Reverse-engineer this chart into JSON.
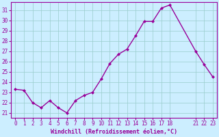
{
  "x": [
    0,
    1,
    2,
    3,
    4,
    5,
    6,
    7,
    8,
    9,
    10,
    11,
    12,
    13,
    14,
    15,
    16,
    17,
    18,
    21,
    22,
    23
  ],
  "y": [
    23.3,
    23.2,
    22.0,
    21.5,
    22.2,
    21.5,
    21.0,
    22.2,
    22.7,
    23.0,
    24.3,
    25.8,
    26.7,
    27.2,
    28.5,
    29.9,
    29.9,
    31.2,
    31.5,
    27.0,
    25.7,
    24.5
  ],
  "line_color": "#990099",
  "marker": "D",
  "marker_size": 2.0,
  "bg_color": "#cceeff",
  "grid_color": "#99cccc",
  "xlabel": "Windchill (Refroidissement éolien,°C)",
  "xlabel_color": "#990099",
  "tick_color": "#990099",
  "spine_color": "#990099",
  "xlim": [
    -0.5,
    23.5
  ],
  "ylim": [
    20.5,
    31.8
  ],
  "yticks": [
    21,
    22,
    23,
    24,
    25,
    26,
    27,
    28,
    29,
    30,
    31
  ],
  "xticks": [
    0,
    1,
    2,
    3,
    4,
    5,
    6,
    7,
    8,
    9,
    10,
    11,
    12,
    13,
    14,
    15,
    16,
    17,
    18,
    21,
    22,
    23
  ],
  "xtick_labels": [
    "0",
    "1",
    "2",
    "3",
    "4",
    "5",
    "6",
    "7",
    "8",
    "9",
    "10",
    "11",
    "12",
    "13",
    "14",
    "15",
    "16",
    "17",
    "18",
    "21",
    "22",
    "23"
  ],
  "tick_fontsize": 5.5,
  "xlabel_fontsize": 6.0,
  "linewidth": 1.0
}
